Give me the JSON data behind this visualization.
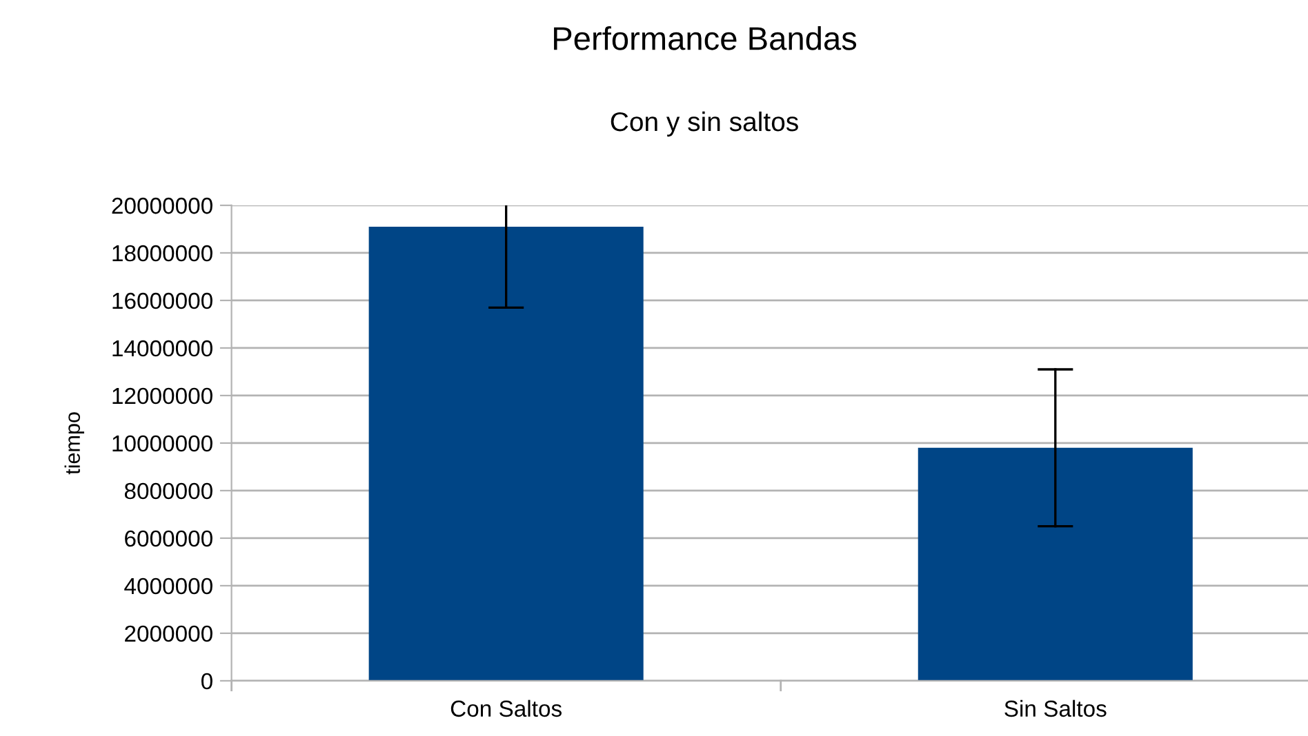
{
  "chart_data": {
    "type": "bar",
    "title": "Performance Bandas",
    "subtitle": "Con y sin saltos",
    "ylabel": "tiempo",
    "categories": [
      "Con Saltos",
      "Sin Saltos"
    ],
    "values": [
      19100000,
      9800000
    ],
    "errors": [
      [
        15700000,
        20000000
      ],
      3300000
    ],
    "color": "#004586",
    "ylim": [
      0,
      20000000
    ],
    "yticks": [
      0,
      2000000,
      4000000,
      6000000,
      8000000,
      10000000,
      12000000,
      14000000,
      16000000,
      18000000,
      20000000
    ],
    "grid": "y",
    "legend": false
  }
}
